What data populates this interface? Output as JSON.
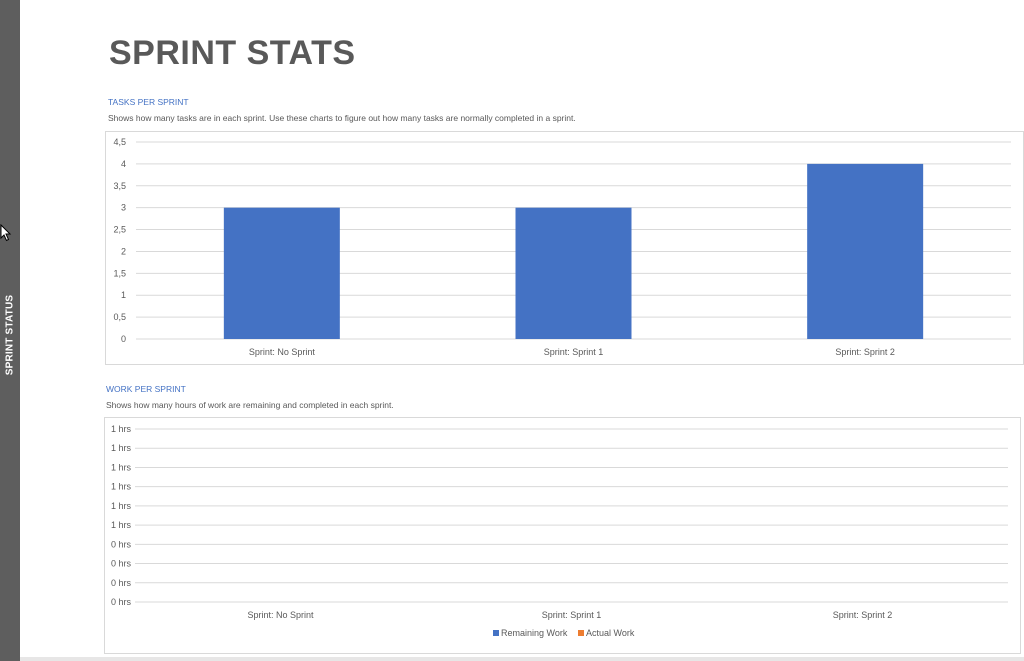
{
  "side_tab": {
    "label": "SPRINT STATUS"
  },
  "page": {
    "title": "SPRINT STATS"
  },
  "colors": {
    "accent": "#4472c4",
    "actual": "#ed7d31",
    "side_tab": "#5e5e5e"
  },
  "tasks_section": {
    "title": "TASKS PER SPRINT",
    "description": "Shows how many tasks are in each sprint. Use these charts to figure out how many tasks are normally completed in a sprint."
  },
  "work_section": {
    "title": "WORK PER SPRINT",
    "description": "Shows how many hours of work are remaining and completed in each sprint."
  },
  "chart_data": [
    {
      "type": "bar",
      "categories": [
        "Sprint: No Sprint",
        "Sprint: Sprint 1",
        "Sprint: Sprint 2"
      ],
      "values": [
        3,
        3,
        4
      ],
      "ylim": [
        0,
        4.5
      ],
      "ytick_labels": [
        "0",
        "0,5",
        "1",
        "1,5",
        "2",
        "2,5",
        "3",
        "3,5",
        "4",
        "4,5"
      ],
      "grid": true,
      "color": "#4472c4"
    },
    {
      "type": "bar",
      "categories": [
        "Sprint: No Sprint",
        "Sprint: Sprint 1",
        "Sprint: Sprint 2"
      ],
      "series": [
        {
          "name": "Remaining Work",
          "values": [
            0,
            0,
            0
          ],
          "color": "#4472c4"
        },
        {
          "name": "Actual Work",
          "values": [
            0,
            0,
            0
          ],
          "color": "#ed7d31"
        }
      ],
      "ytick_labels": [
        "0 hrs",
        "0 hrs",
        "0 hrs",
        "0 hrs",
        "1 hrs",
        "1 hrs",
        "1 hrs",
        "1 hrs",
        "1 hrs",
        "1 hrs"
      ],
      "grid": true,
      "legend": "bottom"
    }
  ]
}
